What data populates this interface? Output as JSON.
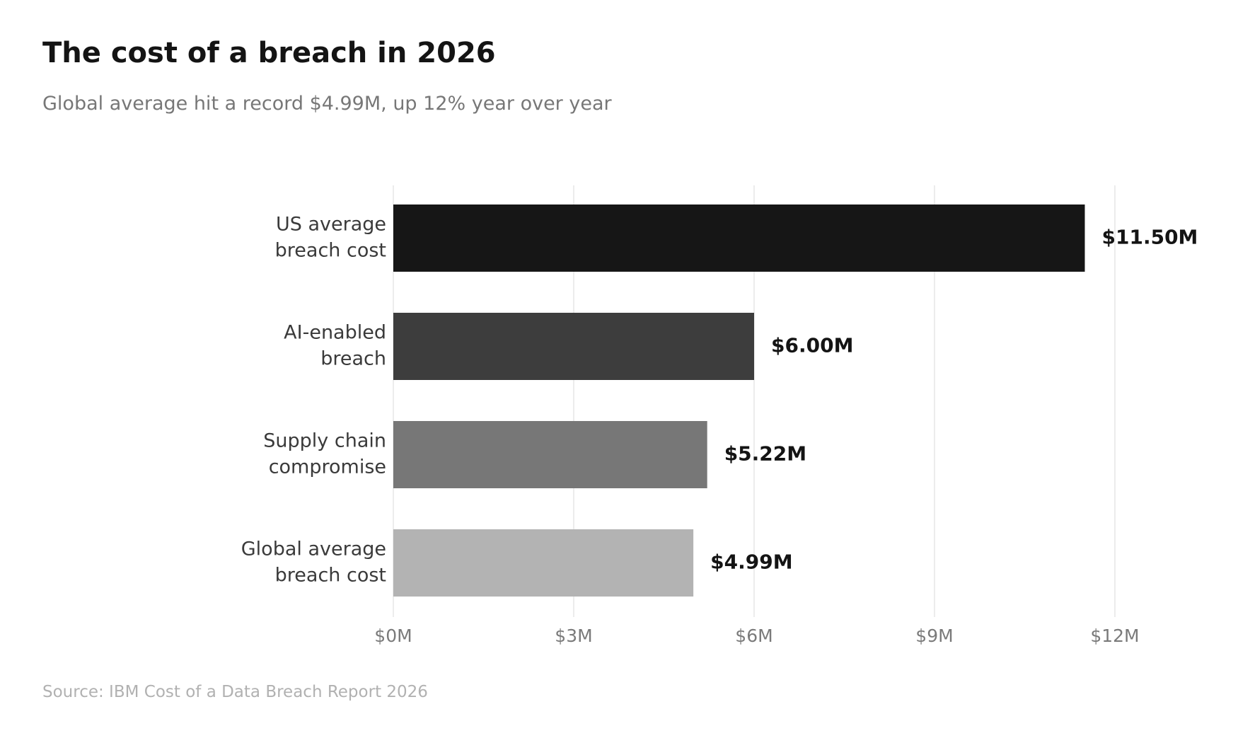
{
  "header": {
    "title": "The cost of a breach in 2026",
    "subtitle": "Global average hit a record $4.99M, up 12% year over year"
  },
  "footer": {
    "source": "Source: IBM Cost of a Data Breach Report 2026"
  },
  "chart_data": {
    "type": "bar",
    "orientation": "horizontal",
    "title": "The cost of a breach in 2026",
    "subtitle": "Global average hit a record $4.99M, up 12% year over year",
    "categories": [
      [
        "US average",
        "breach cost"
      ],
      [
        "AI-enabled",
        "breach"
      ],
      [
        "Supply chain",
        "compromise"
      ],
      [
        "Global average",
        "breach cost"
      ]
    ],
    "values": [
      11.5,
      6.0,
      5.22,
      4.99
    ],
    "value_labels": [
      "$11.50M",
      "$6.00M",
      "$5.22M",
      "$4.99M"
    ],
    "bar_colors": [
      "#161616",
      "#3d3d3d",
      "#777777",
      "#b3b3b3"
    ],
    "units": "USD millions",
    "xlim": [
      0,
      12
    ],
    "xticks": [
      0,
      3,
      6,
      9,
      12
    ],
    "xtick_labels": [
      "$0M",
      "$3M",
      "$6M",
      "$9M",
      "$12M"
    ],
    "grid": "vertical",
    "gridline_color": "#ececec",
    "legend": "none"
  }
}
